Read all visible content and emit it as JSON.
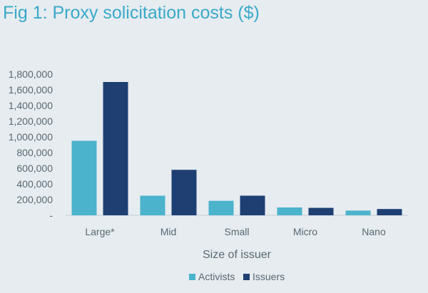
{
  "title": "Fig 1: Proxy solicitation costs ($)",
  "chart_data": {
    "type": "bar",
    "title": "Fig 1: Proxy solicitation costs ($)",
    "xlabel": "Size of issuer",
    "ylabel": "",
    "categories": [
      "Large*",
      "Mid",
      "Small",
      "Micro",
      "Nano"
    ],
    "series": [
      {
        "name": "Activists",
        "values": [
          950000,
          250000,
          185000,
          100000,
          60000
        ],
        "color": "#4bb3cb"
      },
      {
        "name": "Issuers",
        "values": [
          1700000,
          580000,
          250000,
          95000,
          80000
        ],
        "color": "#1f3f73"
      }
    ],
    "ylim": [
      0,
      1800000
    ],
    "yticks": [
      0,
      200000,
      400000,
      600000,
      800000,
      1000000,
      1200000,
      1400000,
      1600000,
      1800000
    ],
    "ytick_labels": [
      "-",
      "200,000",
      "400,000",
      "600,000",
      "800,000",
      "1,000,000",
      "1,200,000",
      "1,400,000",
      "1,600,000",
      "1,800,000"
    ],
    "grid": false,
    "legend": "bottom-center"
  }
}
